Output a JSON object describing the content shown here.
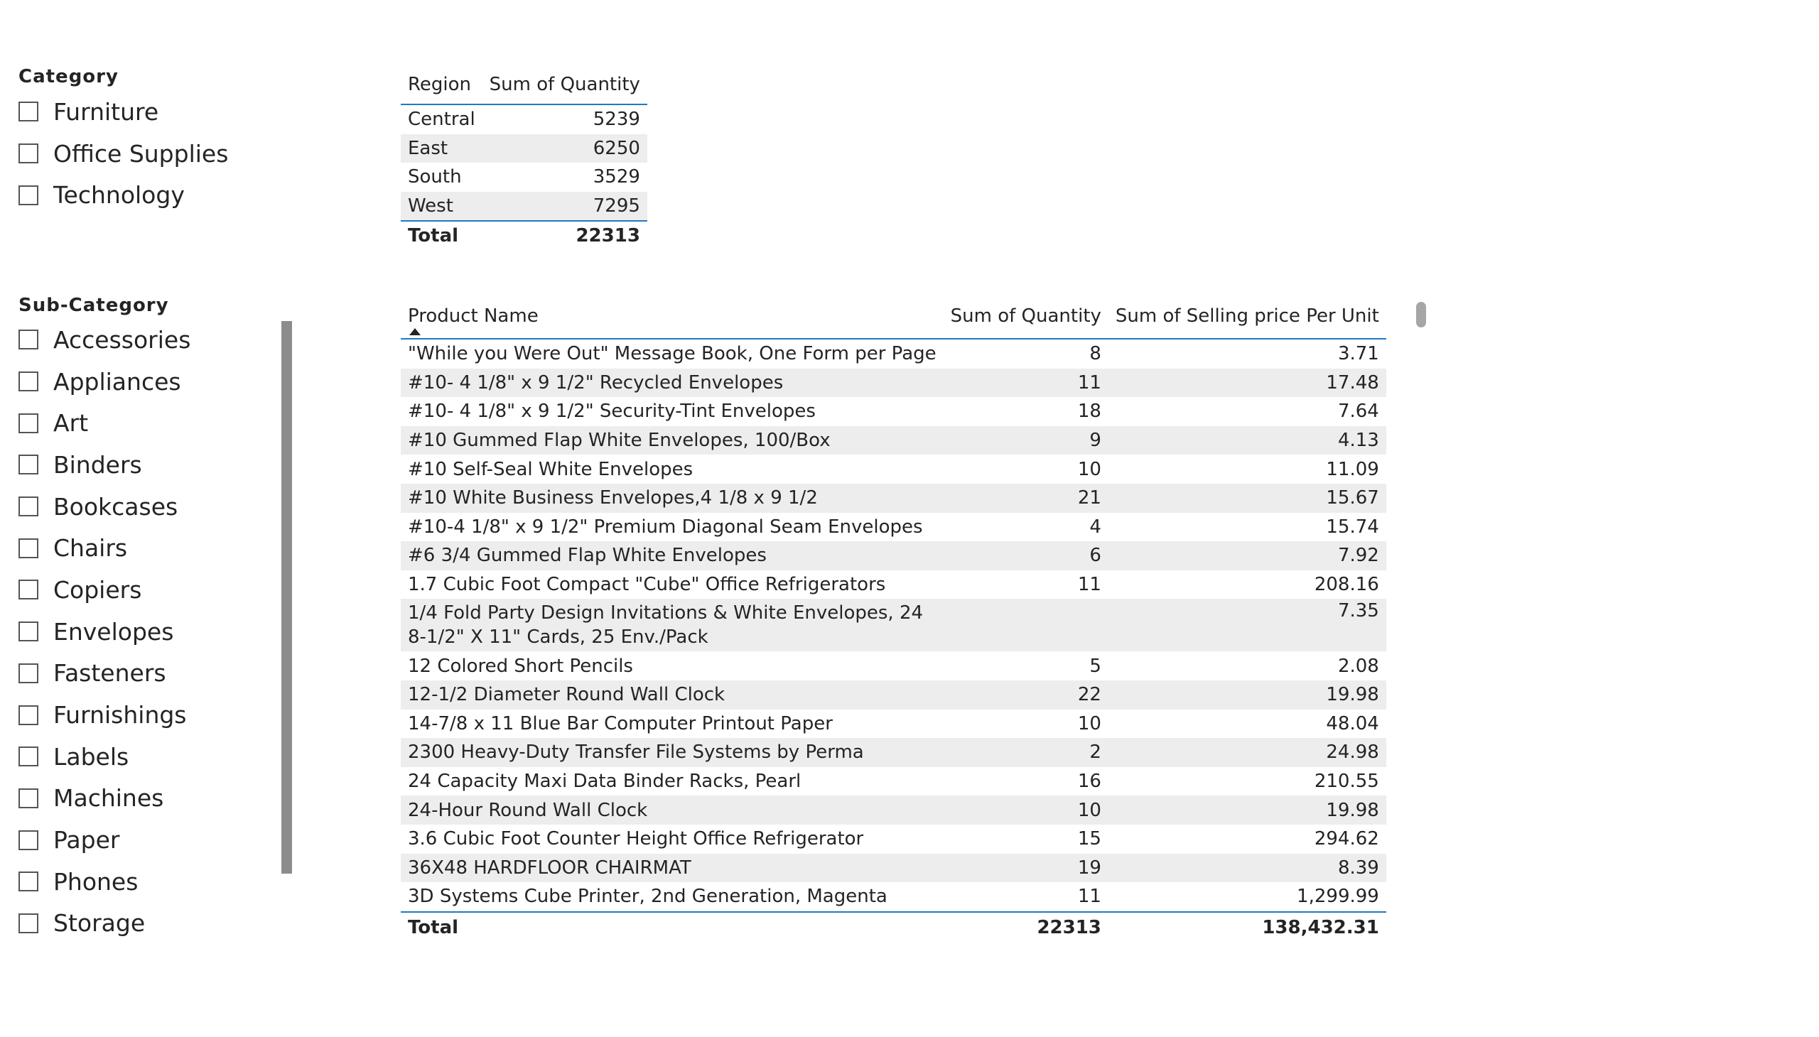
{
  "category_slicer": {
    "title": "Category",
    "items": [
      "Furniture",
      "Office Supplies",
      "Technology"
    ]
  },
  "subcategory_slicer": {
    "title": "Sub-Category",
    "items": [
      "Accessories",
      "Appliances",
      "Art",
      "Binders",
      "Bookcases",
      "Chairs",
      "Copiers",
      "Envelopes",
      "Fasteners",
      "Furnishings",
      "Labels",
      "Machines",
      "Paper",
      "Phones",
      "Storage"
    ]
  },
  "region_table": {
    "headers": [
      "Region",
      "Sum of Quantity"
    ],
    "rows": [
      [
        "Central",
        "5239"
      ],
      [
        "East",
        "6250"
      ],
      [
        "South",
        "3529"
      ],
      [
        "West",
        "7295"
      ]
    ],
    "total_label": "Total",
    "total_value": "22313"
  },
  "product_table": {
    "headers": [
      "Product Name",
      "Sum of Quantity",
      "Sum of Selling price Per Unit"
    ],
    "rows": [
      [
        "\"While you Were Out\" Message Book, One Form per Page",
        "8",
        "3.71"
      ],
      [
        "#10- 4 1/8\" x 9 1/2\" Recycled Envelopes",
        "11",
        "17.48"
      ],
      [
        "#10- 4 1/8\" x 9 1/2\" Security-Tint Envelopes",
        "18",
        "7.64"
      ],
      [
        "#10 Gummed Flap White Envelopes, 100/Box",
        "9",
        "4.13"
      ],
      [
        "#10 Self-Seal White Envelopes",
        "10",
        "11.09"
      ],
      [
        "#10 White Business Envelopes,4 1/8 x 9 1/2",
        "21",
        "15.67"
      ],
      [
        "#10-4 1/8\" x 9 1/2\" Premium Diagonal Seam Envelopes",
        "4",
        "15.74"
      ],
      [
        "#6 3/4 Gummed Flap White Envelopes",
        "6",
        "7.92"
      ],
      [
        "1.7 Cubic Foot Compact \"Cube\" Office Refrigerators",
        "11",
        "208.16"
      ],
      [
        "1/4 Fold Party Design Invitations & White Envelopes, 24 8-1/2\" X 11\" Cards, 25 Env./Pack",
        "",
        "7.35"
      ],
      [
        "12 Colored Short Pencils",
        "5",
        "2.08"
      ],
      [
        "12-1/2 Diameter Round Wall Clock",
        "22",
        "19.98"
      ],
      [
        "14-7/8 x 11 Blue Bar Computer Printout Paper",
        "10",
        "48.04"
      ],
      [
        "2300 Heavy-Duty Transfer File Systems by Perma",
        "2",
        "24.98"
      ],
      [
        "24 Capacity Maxi Data Binder Racks, Pearl",
        "16",
        "210.55"
      ],
      [
        "24-Hour Round Wall Clock",
        "10",
        "19.98"
      ],
      [
        "3.6 Cubic Foot Counter Height Office Refrigerator",
        "15",
        "294.62"
      ],
      [
        "36X48 HARDFLOOR CHAIRMAT",
        "19",
        "8.39"
      ],
      [
        "3D Systems Cube Printer, 2nd Generation, Magenta",
        "11",
        "1,299.99"
      ]
    ],
    "total_label": "Total",
    "total_quantity": "22313",
    "total_price": "138,432.31"
  }
}
